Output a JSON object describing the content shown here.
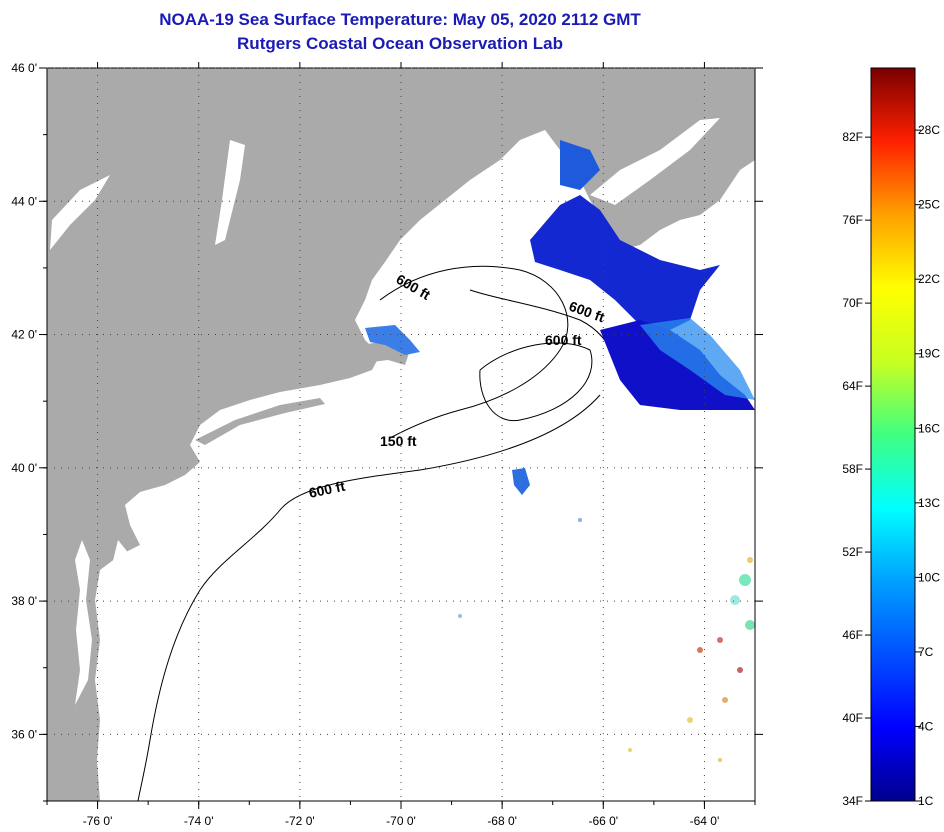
{
  "title": {
    "line1": "NOAA-19 Sea Surface Temperature:  May 05, 2020 2112 GMT",
    "line2": "Rutgers Coastal Ocean Observation Lab"
  },
  "map": {
    "lat_labels": [
      "46 0'",
      "44 0'",
      "42 0'",
      "40 0'",
      "38 0'",
      "36 0'"
    ],
    "lat_values": [
      46,
      44,
      42,
      40,
      38,
      36
    ],
    "lon_labels": [
      "-76 0'",
      "-74 0'",
      "-72 0'",
      "-70 0'",
      "-68 0'",
      "-66 0'",
      "-64 0'"
    ],
    "lon_values": [
      -76,
      -74,
      -72,
      -70,
      -68,
      -66,
      -64
    ],
    "lon_range": [
      -77,
      -63
    ],
    "lat_range": [
      35,
      46
    ],
    "contour_labels": [
      "600 ft",
      "600 ft",
      "600 ft",
      "150 ft",
      "600 ft"
    ]
  },
  "colorbar": {
    "fahrenheit_labels": [
      "82F",
      "76F",
      "70F",
      "64F",
      "58F",
      "52F",
      "46F",
      "40F",
      "34F"
    ],
    "celsius_labels": [
      "28C",
      "25C",
      "22C",
      "19C",
      "16C",
      "13C",
      "10C",
      "7C",
      "4C",
      "1C"
    ]
  },
  "colors": {
    "land": "#aaaaaa",
    "water": "#ffffff",
    "title": "#1a1ab4",
    "cold_blue": "#1428d2"
  }
}
